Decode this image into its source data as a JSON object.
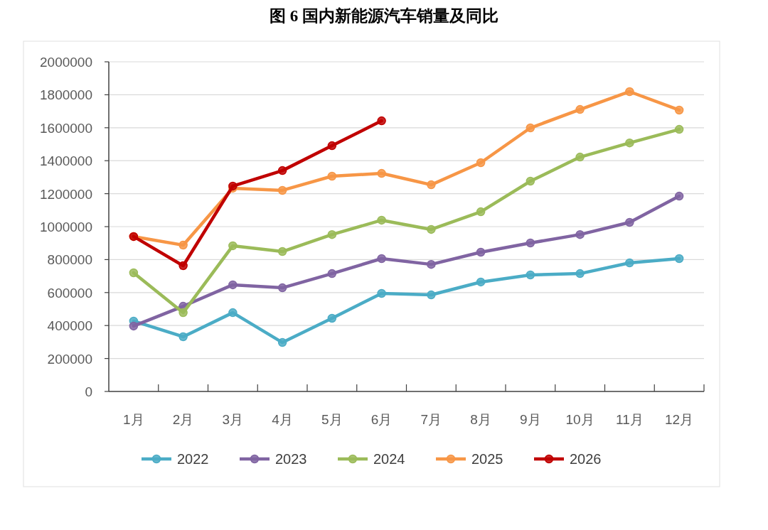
{
  "chart_data": {
    "type": "line",
    "title": "图 6  国内新能源汽车销量及同比",
    "categories": [
      "1月",
      "2月",
      "3月",
      "4月",
      "5月",
      "6月",
      "7月",
      "8月",
      "9月",
      "10月",
      "11月",
      "12月"
    ],
    "series": [
      {
        "name": "2022",
        "color": "#4bacc6",
        "values": [
          427000,
          332000,
          478000,
          297000,
          444000,
          595000,
          586000,
          664000,
          707000,
          715000,
          780000,
          806000
        ]
      },
      {
        "name": "2023",
        "color": "#8064a2",
        "values": [
          397000,
          517000,
          647000,
          629000,
          715000,
          806000,
          771000,
          845000,
          901000,
          952000,
          1026000,
          1185000
        ]
      },
      {
        "name": "2024",
        "color": "#9bbb59",
        "values": [
          720000,
          478000,
          884000,
          849000,
          952000,
          1039000,
          983000,
          1090000,
          1276000,
          1422000,
          1508000,
          1590000
        ]
      },
      {
        "name": "2025",
        "color": "#f79646",
        "values": [
          940000,
          888000,
          1233000,
          1220000,
          1306000,
          1323000,
          1254000,
          1388000,
          1599000,
          1711000,
          1819000,
          1707000
        ]
      },
      {
        "name": "2026",
        "color": "#c00000",
        "values": [
          940000,
          763000,
          1246000,
          1340000,
          1491000,
          1642000,
          null,
          null,
          null,
          null,
          null,
          null
        ]
      }
    ],
    "ylim": [
      0,
      2000000
    ],
    "yticks": [
      0,
      200000,
      400000,
      600000,
      800000,
      1000000,
      1200000,
      1400000,
      1600000,
      1800000,
      2000000
    ],
    "grid": "y",
    "legend": "bottom",
    "marker": "circle",
    "line_style": "solid"
  }
}
